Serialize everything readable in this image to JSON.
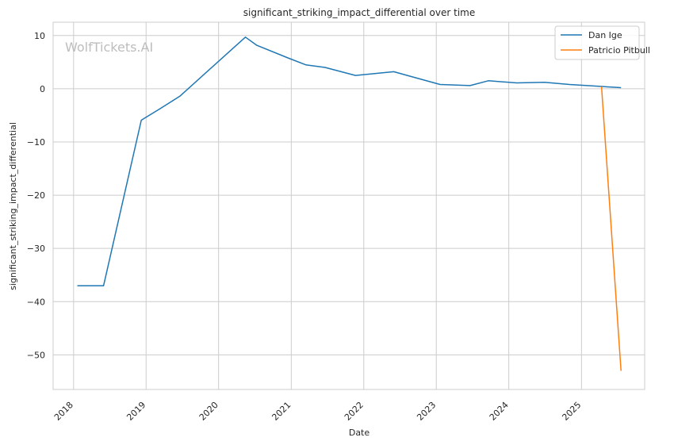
{
  "watermark": "WolfTickets.AI",
  "chart_data": {
    "type": "line",
    "title": "significant_striking_impact_differential over time",
    "xlabel": "Date",
    "ylabel": "significant_striking_impact_differential",
    "x_ticks": [
      "2018",
      "2019",
      "2020",
      "2021",
      "2022",
      "2023",
      "2024",
      "2025"
    ],
    "y_ticks": [
      10,
      0,
      -10,
      -20,
      -30,
      -40,
      -50
    ],
    "xlim": [
      "2017-09-20",
      "2025-11-15"
    ],
    "ylim": [
      -56.5,
      12.5
    ],
    "grid": true,
    "legend_position": "top-right",
    "series": [
      {
        "name": "Dan Ige",
        "color": "#1f77b4",
        "points": [
          [
            "2018-01-20",
            -37.0
          ],
          [
            "2018-06-01",
            -37.0
          ],
          [
            "2018-12-08",
            -5.9
          ],
          [
            "2019-03-10",
            -3.8
          ],
          [
            "2019-06-20",
            -1.4
          ],
          [
            "2020-05-15",
            9.7
          ],
          [
            "2020-07-10",
            8.2
          ],
          [
            "2020-12-15",
            5.8
          ],
          [
            "2021-03-15",
            4.5
          ],
          [
            "2021-06-20",
            4.0
          ],
          [
            "2021-11-20",
            2.5
          ],
          [
            "2022-06-01",
            3.2
          ],
          [
            "2023-01-20",
            0.8
          ],
          [
            "2023-06-20",
            0.6
          ],
          [
            "2023-09-20",
            1.5
          ],
          [
            "2024-02-10",
            1.1
          ],
          [
            "2024-06-29",
            1.2
          ],
          [
            "2024-11-01",
            0.8
          ],
          [
            "2025-07-19",
            0.2
          ]
        ]
      },
      {
        "name": "Patricio Pitbull",
        "color": "#ff7f0e",
        "points": [
          [
            "2025-04-12",
            0.4
          ],
          [
            "2025-07-19",
            -53.0
          ]
        ]
      }
    ]
  }
}
